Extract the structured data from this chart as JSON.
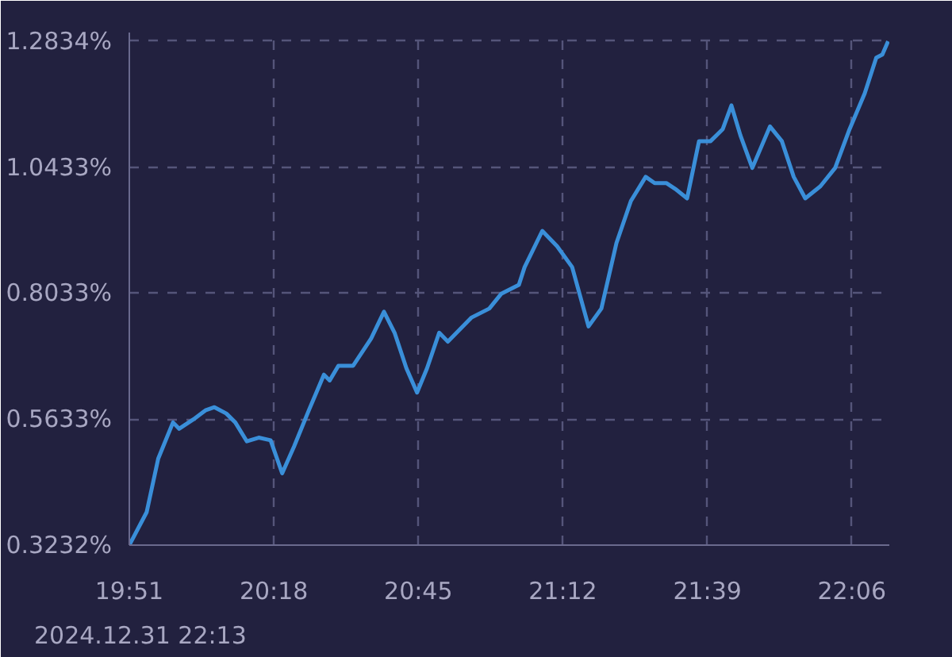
{
  "chart_data": {
    "type": "line",
    "x": [
      19.85,
      19.904,
      19.94,
      19.986,
      20.005,
      20.05,
      20.087,
      20.115,
      20.152,
      20.18,
      20.216,
      20.253,
      20.29,
      20.326,
      20.363,
      20.409,
      20.456,
      20.474,
      20.501,
      20.547,
      20.603,
      20.643,
      20.676,
      20.713,
      20.746,
      20.777,
      20.815,
      20.842,
      20.916,
      20.971,
      21.008,
      21.063,
      21.081,
      21.136,
      21.182,
      21.229,
      21.28,
      21.32,
      21.367,
      21.412,
      21.458,
      21.486,
      21.523,
      21.55,
      21.587,
      21.624,
      21.66,
      21.698,
      21.725,
      21.753,
      21.79,
      21.845,
      21.882,
      21.919,
      21.955,
      22.002,
      22.048,
      22.093,
      22.14,
      22.176,
      22.195,
      22.213
    ],
    "series": [
      {
        "color": "#3a8fd9",
        "values": [
          0.3232,
          0.386,
          0.488,
          0.557,
          0.545,
          0.563,
          0.58,
          0.586,
          0.574,
          0.557,
          0.521,
          0.528,
          0.523,
          0.46,
          0.511,
          0.58,
          0.648,
          0.637,
          0.665,
          0.665,
          0.717,
          0.768,
          0.728,
          0.66,
          0.614,
          0.66,
          0.728,
          0.711,
          0.757,
          0.774,
          0.802,
          0.819,
          0.853,
          0.922,
          0.893,
          0.853,
          0.74,
          0.774,
          0.899,
          0.979,
          1.025,
          1.013,
          1.013,
          1.002,
          0.984,
          1.093,
          1.093,
          1.116,
          1.161,
          1.104,
          1.042,
          1.121,
          1.093,
          1.025,
          0.984,
          1.007,
          1.042,
          1.116,
          1.184,
          1.252,
          1.258,
          1.2834
        ]
      }
    ],
    "xlim": [
      19.85,
      22.2167
    ],
    "ylim": [
      0.3232,
      1.3
    ],
    "xticks": [
      {
        "value": 19.85,
        "label": "19:51"
      },
      {
        "value": 20.3,
        "label": "20:18"
      },
      {
        "value": 20.75,
        "label": "20:45"
      },
      {
        "value": 21.2,
        "label": "21:12"
      },
      {
        "value": 21.65,
        "label": "21:39"
      },
      {
        "value": 22.1,
        "label": "22:06"
      }
    ],
    "yticks": [
      {
        "value": 0.3232,
        "label": "0.3232%"
      },
      {
        "value": 0.5633,
        "label": "0.5633%"
      },
      {
        "value": 0.8033,
        "label": "0.8033%"
      },
      {
        "value": 1.0433,
        "label": "1.0433%"
      },
      {
        "value": 1.2834,
        "label": "1.2834%"
      }
    ],
    "grid": true,
    "line_style": "solid",
    "marker": "none",
    "annotations": [
      "2024.12.31 22:13"
    ]
  }
}
